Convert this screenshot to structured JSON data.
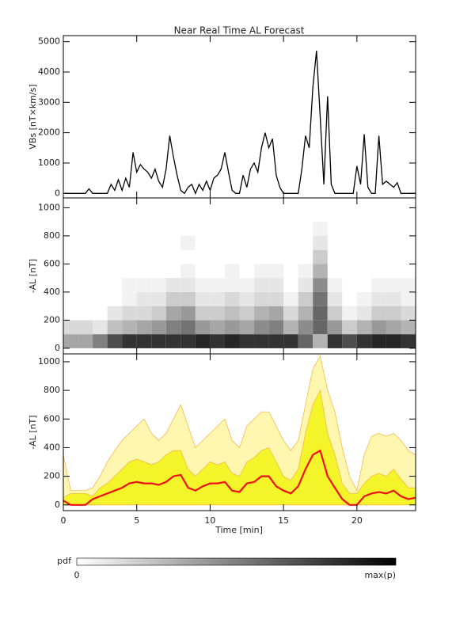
{
  "chart_data": [
    {
      "type": "line",
      "title": "Near Real Time AL Forecast",
      "ylabel": "VBs [nT×km/s]",
      "ylim": [
        -150,
        5200
      ],
      "yticks": [
        0,
        1000,
        2000,
        3000,
        4000,
        5000
      ],
      "color": "#000000",
      "x": [
        0,
        0.25,
        0.5,
        0.75,
        1,
        1.25,
        1.5,
        1.75,
        2,
        2.25,
        2.5,
        2.75,
        3,
        3.25,
        3.5,
        3.75,
        4,
        4.25,
        4.5,
        4.75,
        5,
        5.25,
        5.5,
        5.75,
        6,
        6.25,
        6.5,
        6.75,
        7,
        7.25,
        7.5,
        7.75,
        8,
        8.25,
        8.5,
        8.75,
        9,
        9.25,
        9.5,
        9.75,
        10,
        10.25,
        10.5,
        10.75,
        11,
        11.25,
        11.5,
        11.75,
        12,
        12.25,
        12.5,
        12.75,
        13,
        13.25,
        13.5,
        13.75,
        14,
        14.25,
        14.5,
        14.75,
        15,
        15.25,
        15.5,
        15.75,
        16,
        16.25,
        16.5,
        16.75,
        17,
        17.25,
        17.5,
        17.75,
        18,
        18.25,
        18.5,
        18.75,
        19,
        19.25,
        19.5,
        19.75,
        20,
        20.25,
        20.5,
        20.75,
        21,
        21.25,
        21.5,
        21.75,
        22,
        22.25,
        22.5,
        22.75,
        23,
        23.25,
        23.5,
        23.75,
        24
      ],
      "values": [
        0,
        0,
        0,
        0,
        0,
        0,
        0,
        150,
        0,
        0,
        0,
        0,
        0,
        300,
        100,
        450,
        100,
        500,
        200,
        1350,
        700,
        950,
        800,
        700,
        500,
        800,
        400,
        200,
        800,
        1900,
        1200,
        600,
        100,
        0,
        200,
        300,
        0,
        300,
        100,
        400,
        100,
        500,
        600,
        800,
        1350,
        700,
        100,
        0,
        0,
        600,
        200,
        800,
        1000,
        700,
        1500,
        2000,
        1500,
        1800,
        600,
        200,
        0,
        0,
        0,
        0,
        0,
        800,
        1900,
        1500,
        3500,
        4700,
        2500,
        300,
        3200,
        300,
        0,
        0,
        0,
        0,
        0,
        0,
        900,
        300,
        1950,
        200,
        0,
        0,
        1900,
        300,
        400,
        300,
        200,
        350,
        0,
        0,
        0,
        0,
        0
      ]
    },
    {
      "type": "heatmap",
      "ylabel": "-AL [nT]",
      "ylim": [
        -40,
        1070
      ],
      "yticks": [
        0,
        200,
        400,
        600,
        800,
        1000
      ],
      "xbins": [
        0,
        1,
        2,
        3,
        4,
        5,
        6,
        7,
        8,
        9,
        10,
        11,
        12,
        13,
        14,
        15,
        16,
        17,
        18,
        19,
        20,
        21,
        22,
        23,
        24
      ],
      "ybins": [
        0,
        100,
        200,
        300,
        400,
        500,
        600,
        700,
        800,
        900,
        1000
      ],
      "z": [
        [
          0.35,
          0.15,
          0,
          0,
          0,
          0,
          0,
          0,
          0,
          0
        ],
        [
          0.35,
          0.15,
          0,
          0,
          0,
          0,
          0,
          0,
          0,
          0
        ],
        [
          0.5,
          0.1,
          0,
          0,
          0,
          0,
          0,
          0,
          0,
          0
        ],
        [
          0.7,
          0.25,
          0.1,
          0,
          0,
          0,
          0,
          0,
          0,
          0
        ],
        [
          0.8,
          0.3,
          0.15,
          0.05,
          0.05,
          0,
          0,
          0,
          0,
          0
        ],
        [
          0.8,
          0.35,
          0.15,
          0.1,
          0.05,
          0,
          0,
          0,
          0,
          0
        ],
        [
          0.8,
          0.4,
          0.2,
          0.1,
          0.05,
          0,
          0,
          0,
          0,
          0
        ],
        [
          0.8,
          0.5,
          0.35,
          0.2,
          0.1,
          0,
          0,
          0,
          0,
          0
        ],
        [
          0.8,
          0.55,
          0.4,
          0.2,
          0.1,
          0.05,
          0,
          0.05,
          0,
          0
        ],
        [
          0.85,
          0.4,
          0.2,
          0.1,
          0.05,
          0,
          0,
          0,
          0,
          0
        ],
        [
          0.8,
          0.35,
          0.2,
          0.1,
          0.05,
          0,
          0,
          0,
          0,
          0
        ],
        [
          0.85,
          0.4,
          0.25,
          0.15,
          0.05,
          0.05,
          0,
          0,
          0,
          0
        ],
        [
          0.8,
          0.35,
          0.2,
          0.1,
          0.05,
          0,
          0,
          0,
          0,
          0
        ],
        [
          0.8,
          0.45,
          0.3,
          0.15,
          0.1,
          0.05,
          0,
          0,
          0,
          0
        ],
        [
          0.8,
          0.5,
          0.35,
          0.15,
          0.1,
          0.05,
          0,
          0,
          0,
          0
        ],
        [
          0.8,
          0.3,
          0.15,
          0.05,
          0,
          0,
          0,
          0,
          0,
          0
        ],
        [
          0.6,
          0.45,
          0.3,
          0.2,
          0.1,
          0.05,
          0,
          0,
          0,
          0
        ],
        [
          0.3,
          0.6,
          0.6,
          0.55,
          0.45,
          0.3,
          0.2,
          0.1,
          0.05,
          0
        ],
        [
          0.8,
          0.4,
          0.2,
          0.1,
          0.05,
          0,
          0,
          0,
          0,
          0
        ],
        [
          0.7,
          0.2,
          0.05,
          0,
          0,
          0,
          0,
          0,
          0,
          0
        ],
        [
          0.8,
          0.3,
          0.1,
          0.05,
          0,
          0,
          0,
          0,
          0,
          0
        ],
        [
          0.85,
          0.4,
          0.2,
          0.1,
          0.05,
          0,
          0,
          0,
          0,
          0
        ],
        [
          0.85,
          0.35,
          0.2,
          0.1,
          0.05,
          0,
          0,
          0,
          0,
          0
        ],
        [
          0.8,
          0.3,
          0.15,
          0.05,
          0.05,
          0,
          0,
          0,
          0,
          0
        ]
      ],
      "colorbar": {
        "label": "pdf",
        "min_label": "0",
        "max_label": "max(p)"
      }
    },
    {
      "type": "area",
      "ylabel": "-AL [nT]",
      "xlabel": "Time [min]",
      "xlim": [
        0,
        24
      ],
      "xticks": [
        0,
        5,
        10,
        15,
        20
      ],
      "ylim": [
        -40,
        1055
      ],
      "yticks": [
        0,
        200,
        400,
        600,
        800,
        1000
      ],
      "x": [
        0,
        0.5,
        1,
        1.5,
        2,
        2.5,
        3,
        3.5,
        4,
        4.5,
        5,
        5.5,
        6,
        6.5,
        7,
        7.5,
        8,
        8.5,
        9,
        9.5,
        10,
        10.5,
        11,
        11.5,
        12,
        12.5,
        13,
        13.5,
        14,
        14.5,
        15,
        15.5,
        16,
        16.5,
        17,
        17.5,
        18,
        18.5,
        19,
        19.5,
        20,
        20.5,
        21,
        21.5,
        22,
        22.5,
        23,
        23.5,
        24
      ],
      "series": [
        {
          "color": "#fff7b0",
          "stroke": "#f5b041",
          "values": [
            350,
            100,
            100,
            100,
            120,
            200,
            300,
            380,
            450,
            500,
            550,
            600,
            500,
            450,
            500,
            600,
            700,
            550,
            400,
            450,
            500,
            550,
            600,
            450,
            400,
            550,
            600,
            650,
            650,
            550,
            450,
            380,
            450,
            700,
            950,
            1040,
            800,
            650,
            400,
            200,
            100,
            350,
            480,
            500,
            480,
            500,
            450,
            380,
            350
          ]
        },
        {
          "color": "#f4f42a",
          "stroke": "#f5b041",
          "values": [
            50,
            80,
            80,
            80,
            60,
            120,
            150,
            200,
            250,
            300,
            320,
            300,
            280,
            300,
            350,
            380,
            380,
            250,
            200,
            250,
            300,
            280,
            300,
            220,
            200,
            300,
            330,
            380,
            400,
            300,
            200,
            170,
            250,
            500,
            700,
            800,
            500,
            350,
            150,
            80,
            80,
            150,
            200,
            220,
            200,
            250,
            180,
            120,
            120
          ]
        },
        {
          "color": "#ee1111",
          "stroke": "#ee1111",
          "line": true,
          "values": [
            30,
            0,
            0,
            0,
            40,
            60,
            80,
            100,
            120,
            150,
            160,
            150,
            150,
            140,
            160,
            200,
            210,
            120,
            100,
            130,
            150,
            150,
            160,
            100,
            90,
            150,
            160,
            200,
            200,
            130,
            100,
            80,
            130,
            250,
            350,
            380,
            200,
            120,
            40,
            0,
            0,
            60,
            80,
            90,
            80,
            100,
            60,
            40,
            50
          ]
        }
      ]
    }
  ]
}
